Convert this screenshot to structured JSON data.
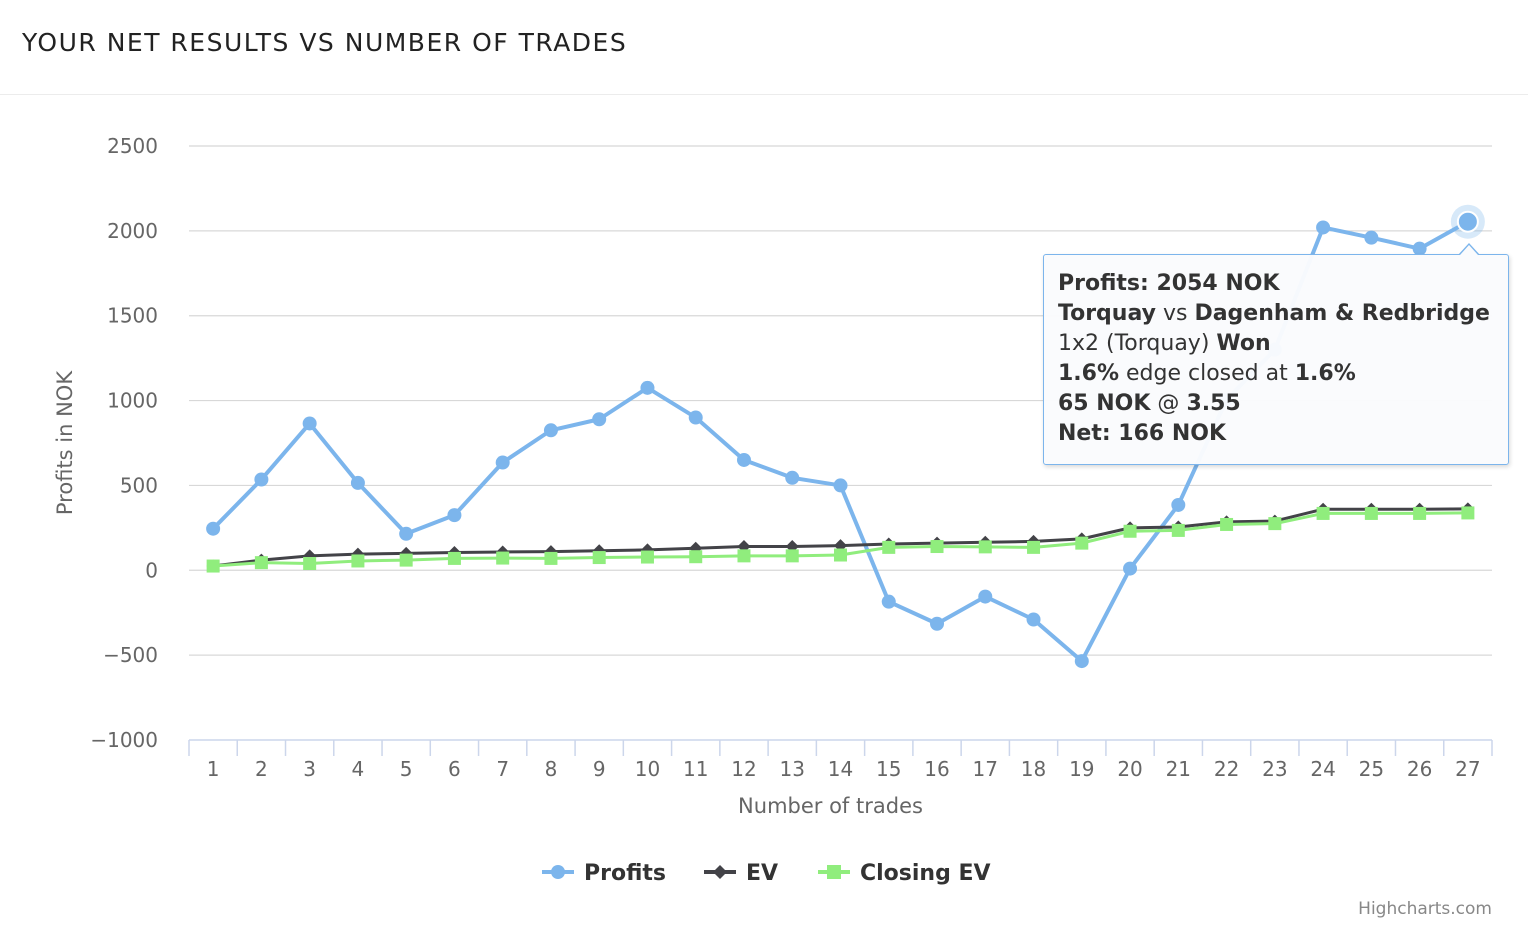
{
  "page": {
    "title": "YOUR NET RESULTS VS NUMBER OF TRADES"
  },
  "chart_data": {
    "type": "line",
    "title": "",
    "xlabel": "Number of trades",
    "ylabel": "Profits in NOK",
    "x": [
      1,
      2,
      3,
      4,
      5,
      6,
      7,
      8,
      9,
      10,
      11,
      12,
      13,
      14,
      15,
      16,
      17,
      18,
      19,
      20,
      21,
      22,
      23,
      24,
      25,
      26,
      27
    ],
    "ylim": [
      -1000,
      2500
    ],
    "yticks": [
      -1000,
      -500,
      0,
      500,
      1000,
      1500,
      2000,
      2500
    ],
    "ytick_labels": [
      "−1000",
      "−500",
      "0",
      "500",
      "1000",
      "1500",
      "2000",
      "2500"
    ],
    "grid": true,
    "legend_position": "bottom-center",
    "series": [
      {
        "name": "Profits",
        "color": "#7cb5ec",
        "marker": "circle",
        "values": [
          245,
          535,
          865,
          515,
          215,
          325,
          635,
          825,
          890,
          1075,
          900,
          650,
          545,
          500,
          -185,
          -315,
          -155,
          -290,
          -535,
          10,
          385,
          1005,
          1300,
          2020,
          1960,
          1895,
          2054
        ]
      },
      {
        "name": "EV",
        "color": "#434348",
        "marker": "diamond",
        "values": [
          25,
          60,
          85,
          95,
          100,
          105,
          108,
          110,
          115,
          120,
          130,
          140,
          140,
          145,
          155,
          160,
          165,
          170,
          185,
          250,
          255,
          285,
          290,
          360,
          360,
          360,
          362
        ]
      },
      {
        "name": "Closing EV",
        "color": "#90ed7d",
        "marker": "square",
        "values": [
          25,
          45,
          40,
          55,
          60,
          70,
          72,
          70,
          75,
          78,
          80,
          85,
          85,
          90,
          135,
          140,
          138,
          135,
          160,
          230,
          235,
          270,
          275,
          335,
          335,
          335,
          338
        ]
      }
    ]
  },
  "tooltip": {
    "profits_label": "Profits: 2054 NOK",
    "home_team": "Torquay",
    "vs": " vs ",
    "away_team": "Dagenham & Redbridge",
    "market": "1x2 (Torquay) ",
    "result": "Won",
    "edge_value": "1.6%",
    "edge_text": " edge closed at ",
    "closing_edge": "1.6%",
    "stake": "65 NOK",
    "at": " @ ",
    "odds": "3.55",
    "net": "Net: 166 NOK"
  },
  "credits": "Highcharts.com"
}
